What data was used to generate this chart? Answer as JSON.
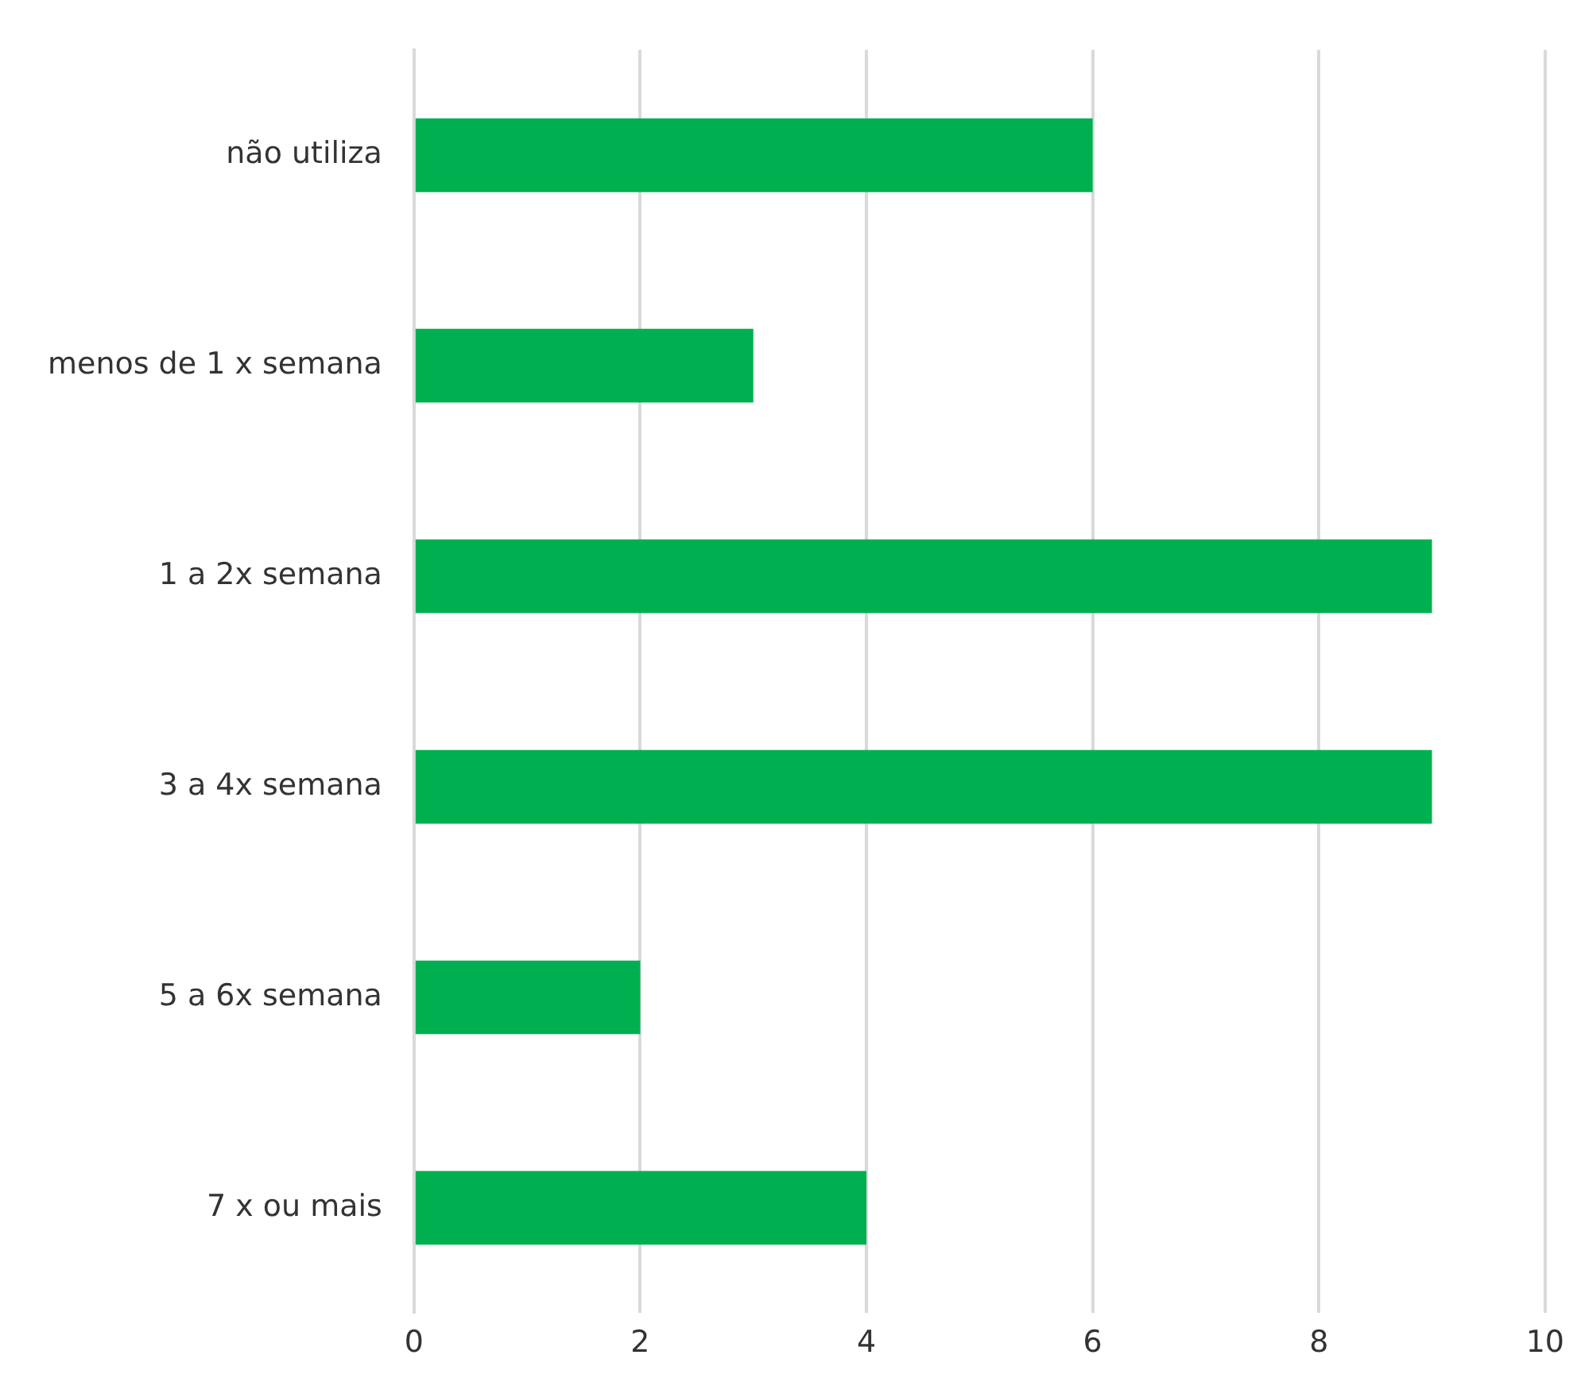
{
  "chart_data": {
    "type": "bar",
    "orientation": "horizontal",
    "categories": [
      "não utiliza",
      "menos de 1 x semana",
      "1 a 2x semana",
      "3 a 4x semana",
      "5 a 6x semana",
      "7 x ou mais"
    ],
    "values": [
      6,
      3,
      9,
      9,
      2,
      4
    ],
    "color": "#00b050",
    "xlim": [
      0,
      10
    ],
    "xticks": [
      0,
      2,
      4,
      6,
      8,
      10
    ],
    "grid": "x",
    "legend": false
  }
}
